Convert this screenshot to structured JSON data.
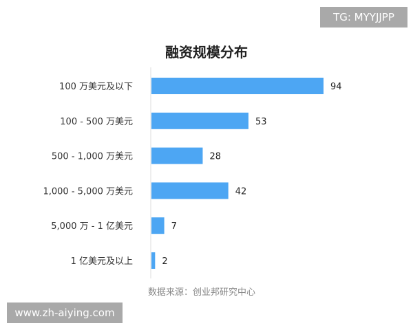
{
  "watermarks": {
    "top_right": "TG: MYYJJPP",
    "bottom_left": "www.zh-aiying.com"
  },
  "chart_data": {
    "type": "bar",
    "orientation": "horizontal",
    "title": "融资规模分布",
    "categories": [
      "100 万美元及以下",
      "100 - 500 万美元",
      "500 - 1,000 万美元",
      "1,000 - 5,000 万美元",
      "5,000 万 - 1 亿美元",
      "1 亿美元及以上"
    ],
    "values": [
      94,
      53,
      28,
      42,
      7,
      2
    ],
    "xlim": [
      0,
      94
    ],
    "grid": false,
    "data_labels": true,
    "bar_color": "#4da6f3",
    "source": "数据来源：创业邦研究中心"
  }
}
